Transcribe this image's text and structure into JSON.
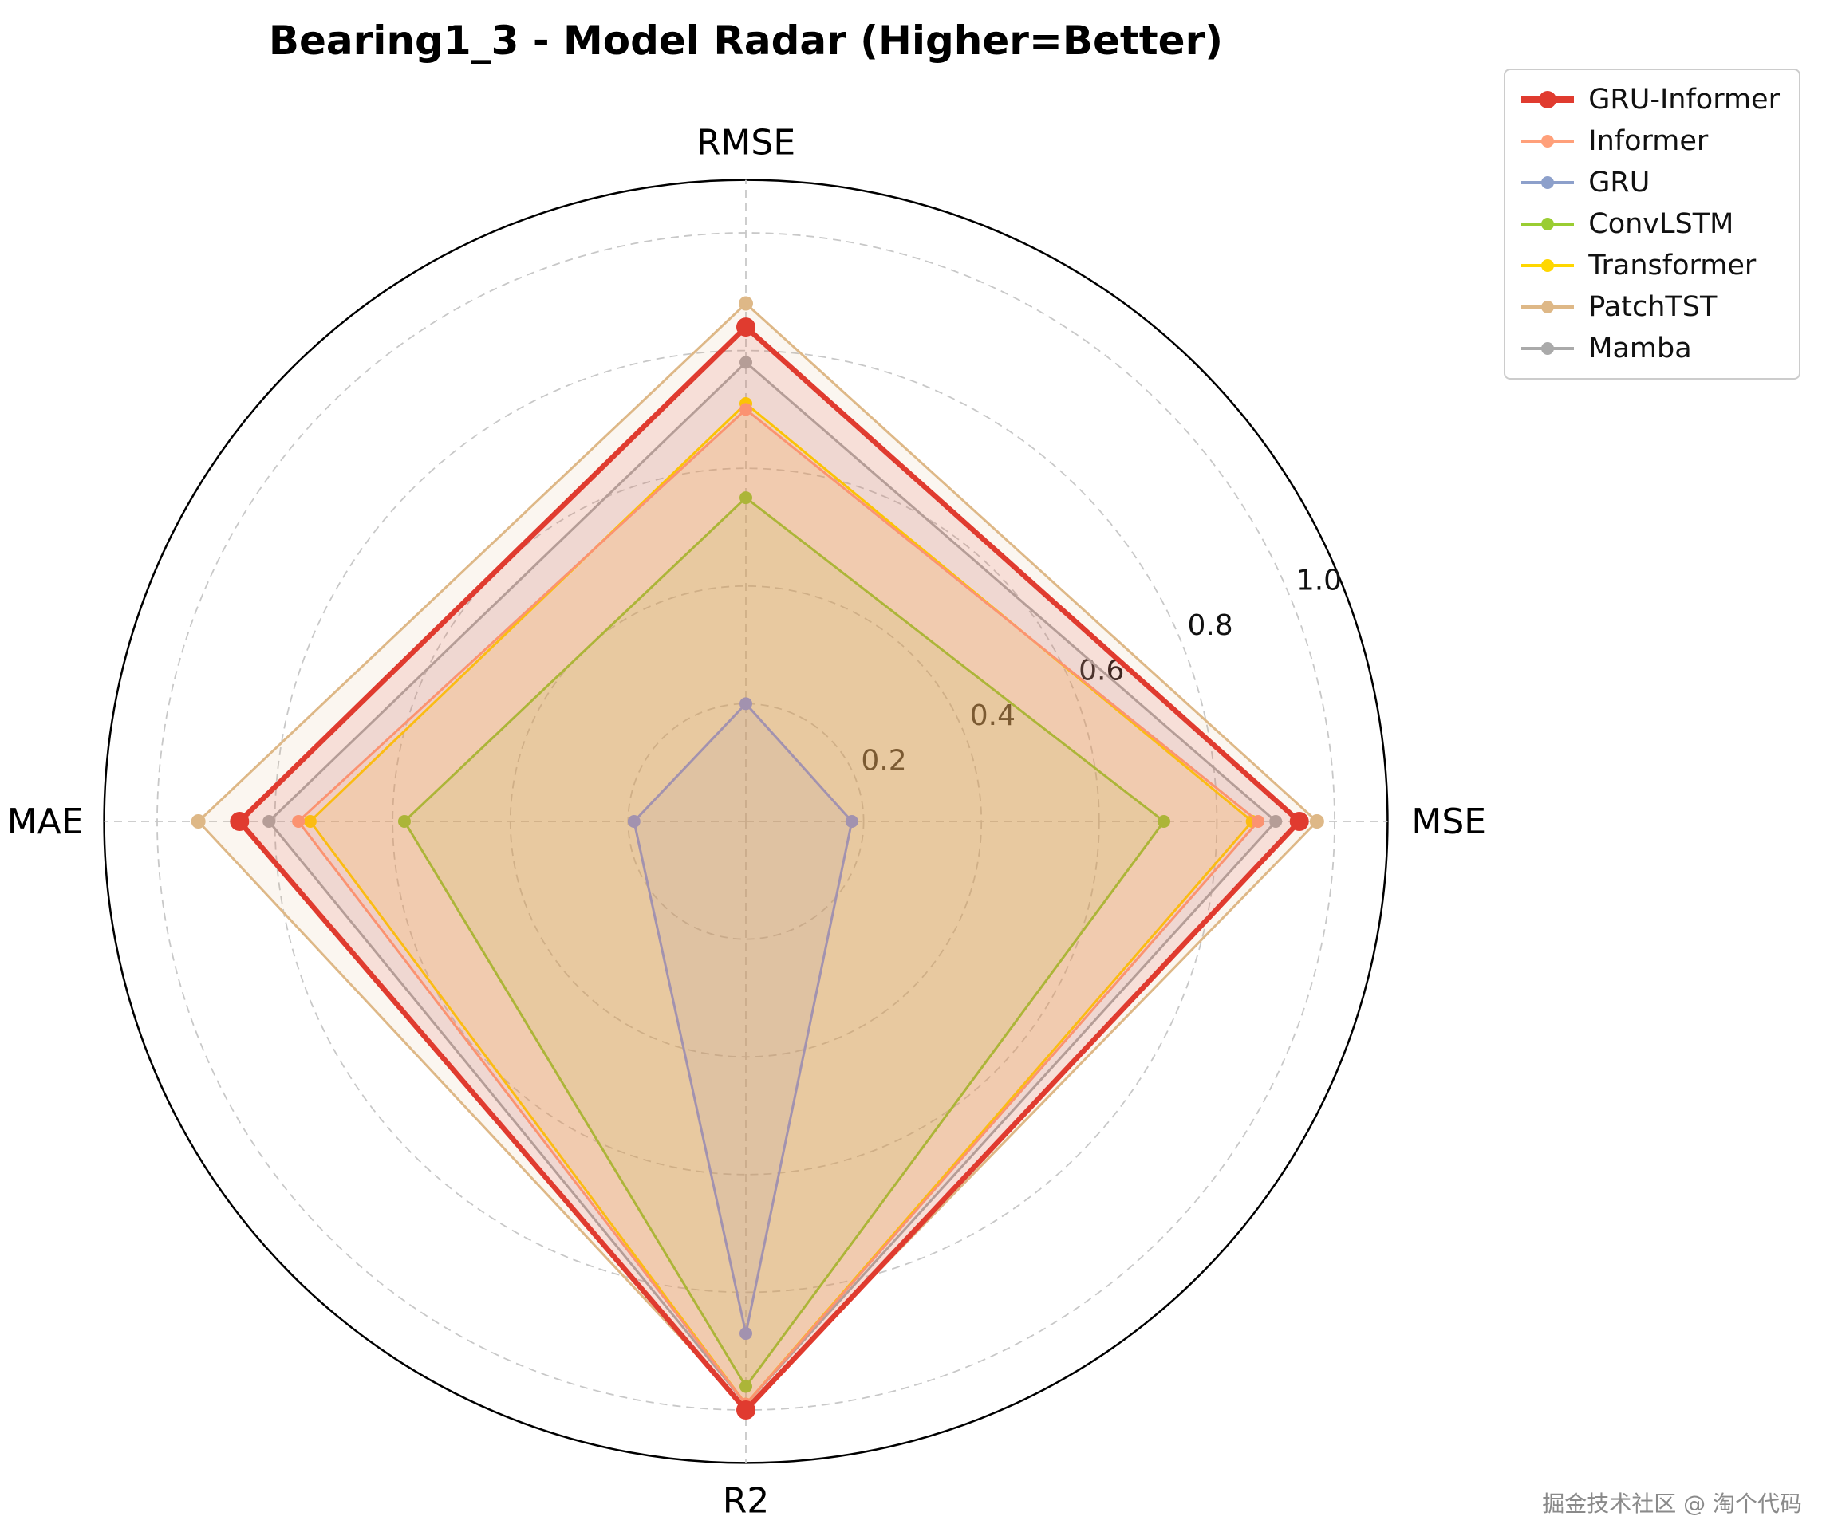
{
  "title": "Bearing1_3 - Model Radar (Higher=Better)",
  "watermark": "掘金技术社区 @ 淘个代码",
  "chart_data": {
    "type": "radar",
    "title": "Bearing1_3 - Model Radar (Higher=Better)",
    "categories": [
      "RMSE",
      "MSE",
      "R2",
      "MAE"
    ],
    "r_ticks": [
      0.2,
      0.4,
      0.6,
      0.8,
      1.0
    ],
    "r_tick_labels": [
      "0.2",
      "0.4",
      "0.6",
      "0.8",
      "1.0"
    ],
    "r_max": 1.09,
    "tick_label_angle_deg": 22.5,
    "grid": "dashed gray circles and dashed spokes, solid black outer circle",
    "legend_position": "upper right",
    "grid_color": "#c8c8c8",
    "outer_circle_color": "#000000",
    "fill_alpha": 0.12,
    "series": [
      {
        "name": "GRU-Informer",
        "color": "#e03b2f",
        "emphasis": true,
        "linewidth": 6.5,
        "markersize": 12,
        "values": [
          0.84,
          0.94,
          1.0,
          0.86
        ]
      },
      {
        "name": "Informer",
        "color": "#ffa07a",
        "emphasis": false,
        "linewidth": 3,
        "markersize": 8,
        "values": [
          0.7,
          0.87,
          0.99,
          0.76
        ]
      },
      {
        "name": "GRU",
        "color": "#8da0cb",
        "emphasis": false,
        "linewidth": 3,
        "markersize": 8,
        "values": [
          0.2,
          0.18,
          0.87,
          0.19
        ]
      },
      {
        "name": "ConvLSTM",
        "color": "#9acd32",
        "emphasis": false,
        "linewidth": 3,
        "markersize": 8,
        "values": [
          0.55,
          0.71,
          0.96,
          0.58
        ]
      },
      {
        "name": "Transformer",
        "color": "#ffd700",
        "emphasis": false,
        "linewidth": 3,
        "markersize": 8,
        "values": [
          0.71,
          0.86,
          0.99,
          0.74
        ]
      },
      {
        "name": "PatchTST",
        "color": "#deb887",
        "emphasis": false,
        "linewidth": 3,
        "markersize": 9,
        "values": [
          0.88,
          0.97,
          0.995,
          0.93
        ]
      },
      {
        "name": "Mamba",
        "color": "#aaaaaa",
        "emphasis": false,
        "linewidth": 3,
        "markersize": 8,
        "values": [
          0.78,
          0.9,
          0.99,
          0.81
        ]
      }
    ]
  }
}
